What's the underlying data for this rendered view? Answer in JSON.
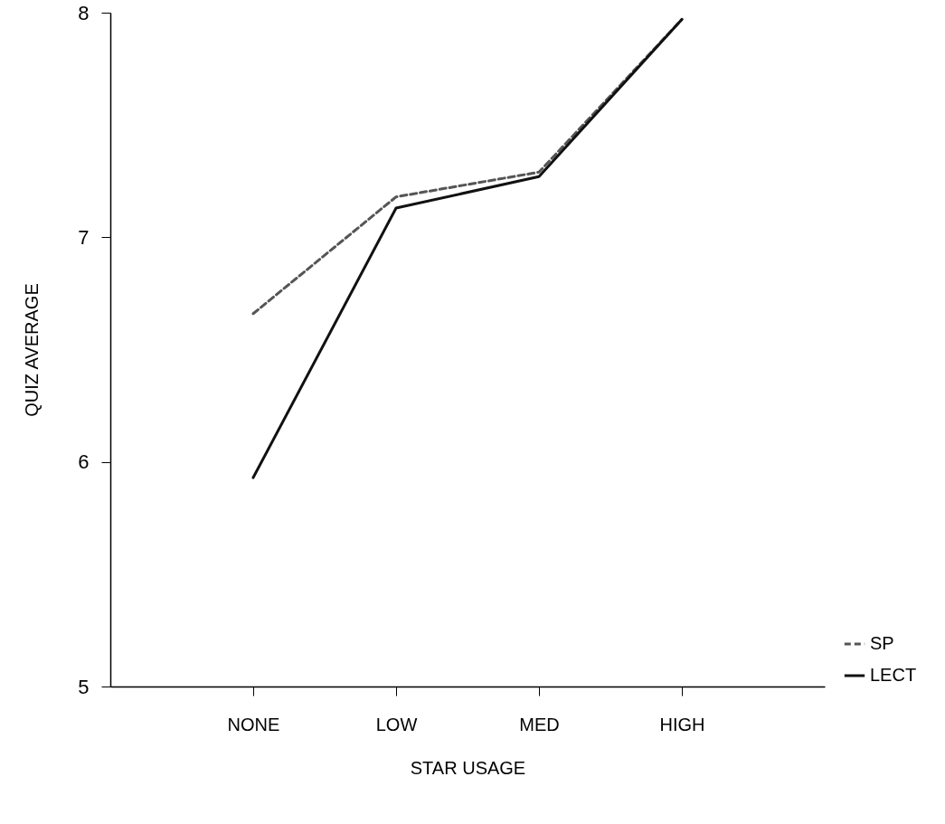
{
  "chart_data": {
    "type": "line",
    "xlabel": "STAR USAGE",
    "ylabel": "QUIZ AVERAGE",
    "categories": [
      "NONE",
      "LOW",
      "MED",
      "HIGH"
    ],
    "series": [
      {
        "name": "SP",
        "color": "#555555",
        "line_style": "dashed",
        "values": [
          6.66,
          7.18,
          7.29,
          7.97
        ]
      },
      {
        "name": "LECT",
        "color": "#111111",
        "line_style": "solid",
        "values": [
          5.93,
          7.13,
          7.27,
          7.97
        ]
      }
    ],
    "ylim": [
      5,
      8
    ],
    "yticks": [
      5,
      6,
      7,
      8
    ],
    "legend": "bottom right",
    "grid": false,
    "marker": "none"
  }
}
